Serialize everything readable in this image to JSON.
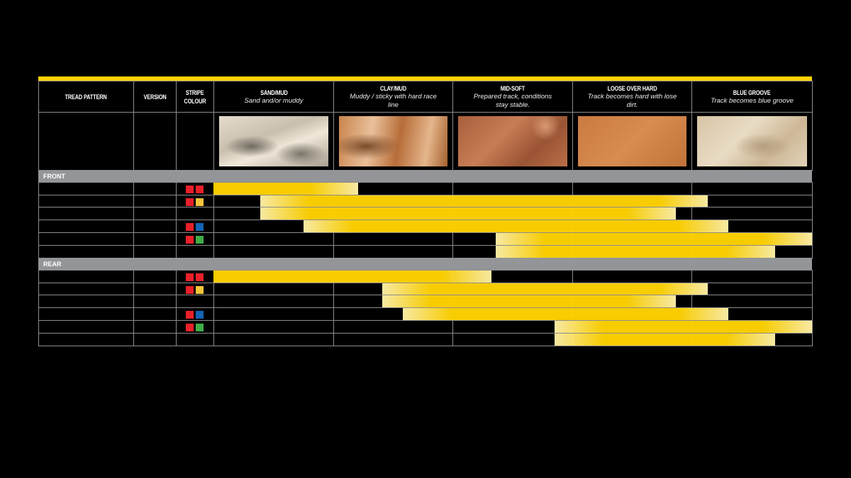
{
  "colors": {
    "accent": "#ffd200",
    "bar_light": "#fff0a8",
    "section_bg": "#939598",
    "grid": "#8c8c8c"
  },
  "header": {
    "tread_pattern": "TREAD PATTERN",
    "version": "VERSION",
    "stripe_colour": [
      "STRIPE",
      "COLOUR"
    ],
    "terrains": [
      {
        "title": "SAND/MUD",
        "subtitle": "Sand and/or muddy",
        "image": "sand-photo"
      },
      {
        "title": "CLAY/MUD",
        "subtitle": "Muddy / sticky with hard race line",
        "image": "clay-photo"
      },
      {
        "title": "MID-SOFT",
        "subtitle": "Prepared track, conditions stay stable.",
        "image": "mid-soft-photo"
      },
      {
        "title": "LOOSE OVER HARD",
        "subtitle": "Track becomes hard with lose dirt.",
        "image": "loose-photo"
      },
      {
        "title": "BLUE GROOVE",
        "subtitle": "Track becomes blue groove",
        "image": "blue-groove-photo"
      }
    ]
  },
  "sections": [
    {
      "label": "FRONT",
      "rows": [
        {
          "stripes": [
            "#e8202a",
            "#e8202a"
          ],
          "range": [
            0,
            1.21
          ]
        },
        {
          "stripes": [
            "#e8202a",
            "#f7c53b"
          ],
          "range": [
            0.39,
            4.13
          ]
        },
        {
          "stripes": [],
          "range": [
            0.39,
            3.86
          ]
        },
        {
          "stripes": [
            "#e8202a",
            "#1464b4"
          ],
          "range": [
            0.75,
            4.3
          ]
        },
        {
          "stripes": [
            "#e8202a",
            "#3fae49"
          ],
          "range": [
            2.36,
            5
          ]
        },
        {
          "stripes": [],
          "range": [
            2.36,
            4.69
          ]
        }
      ]
    },
    {
      "label": "REAR",
      "rows": [
        {
          "stripes": [
            "#e8202a",
            "#e8202a"
          ],
          "range": [
            0,
            2.32
          ]
        },
        {
          "stripes": [
            "#e8202a",
            "#f7c53b"
          ],
          "range": [
            1.41,
            4.13
          ]
        },
        {
          "stripes": [],
          "range": [
            1.41,
            3.86
          ]
        },
        {
          "stripes": [
            "#e8202a",
            "#1464b4"
          ],
          "range": [
            1.58,
            4.3
          ]
        },
        {
          "stripes": [
            "#e8202a",
            "#3fae49"
          ],
          "range": [
            2.85,
            5
          ]
        },
        {
          "stripes": [],
          "range": [
            2.85,
            4.69
          ]
        }
      ]
    }
  ]
}
